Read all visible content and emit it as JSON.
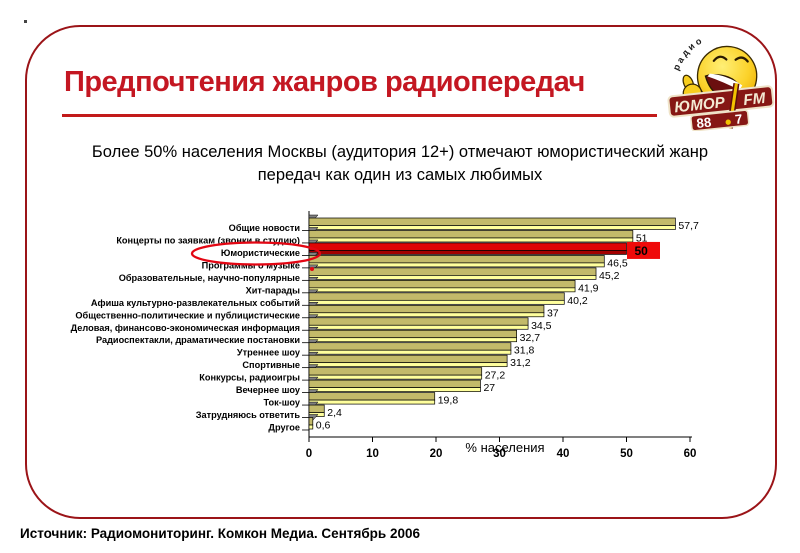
{
  "slide": {
    "title": "Предпочтения жанров радиопередач",
    "subtitle_line1": "Более 50% населения Москвы (аудитория 12+) отмечают юмористический жанр",
    "subtitle_line2": "передач как один из самых любимых",
    "source": "Источник: Радиомониторинг. Комкон Медиа. Сентябрь  2006"
  },
  "logo": {
    "name": "Радио Юмор FM 88.7",
    "arc_text": "радио",
    "banner_left": "ЮМОР",
    "banner_right": "FM",
    "freq_left": "88",
    "freq_right": "7"
  },
  "chart_data": {
    "type": "bar",
    "orientation": "horizontal",
    "title": "",
    "xlabel": "% населения",
    "xlim": [
      0,
      60
    ],
    "xticks": [
      0,
      10,
      20,
      30,
      40,
      50,
      60
    ],
    "grid": false,
    "legend": false,
    "categories": [
      "Общие новости",
      "Концерты по заявкам (звонки в студию)",
      "Юмористические",
      "Программы о музыке",
      "Образовательные, научно-популярные",
      "Хит-парады",
      "Афиша культурно-развлекательных событий",
      "Общественно-политические и публицистические",
      "Деловая, финансово-экономическая информация",
      "Радиоспектакли, драматические постановки",
      "Утреннее шоу",
      "Спортивные",
      "Конкурсы, радиоигры",
      "Вечернее шоу",
      "Ток-шоу",
      "Затрудняюсь ответить",
      "Другое"
    ],
    "values": [
      57.7,
      51,
      50,
      46.5,
      45.2,
      41.9,
      40.2,
      37,
      34.5,
      32.7,
      31.8,
      31.2,
      27.2,
      27,
      19.8,
      2.4,
      0.6
    ],
    "labels": [
      "57,7",
      "51",
      "50",
      "46,5",
      "45,2",
      "41,9",
      "40,2",
      "37",
      "34,5",
      "32,7",
      "31,8",
      "31,2",
      "27,2",
      "27",
      "19,8",
      "2,4",
      "0,6"
    ],
    "highlight_index": 2,
    "highlight_note": "red ellipse drawn around category Юмористические, value 50 shown on red box",
    "colors": {
      "bar": "#C3BA6A",
      "bar_light": "#FFFF9D",
      "highlight": "#DE0505",
      "highlight_dark": "#A30000",
      "wedge": "#7F7F7F",
      "annotation": "#E30613"
    }
  }
}
